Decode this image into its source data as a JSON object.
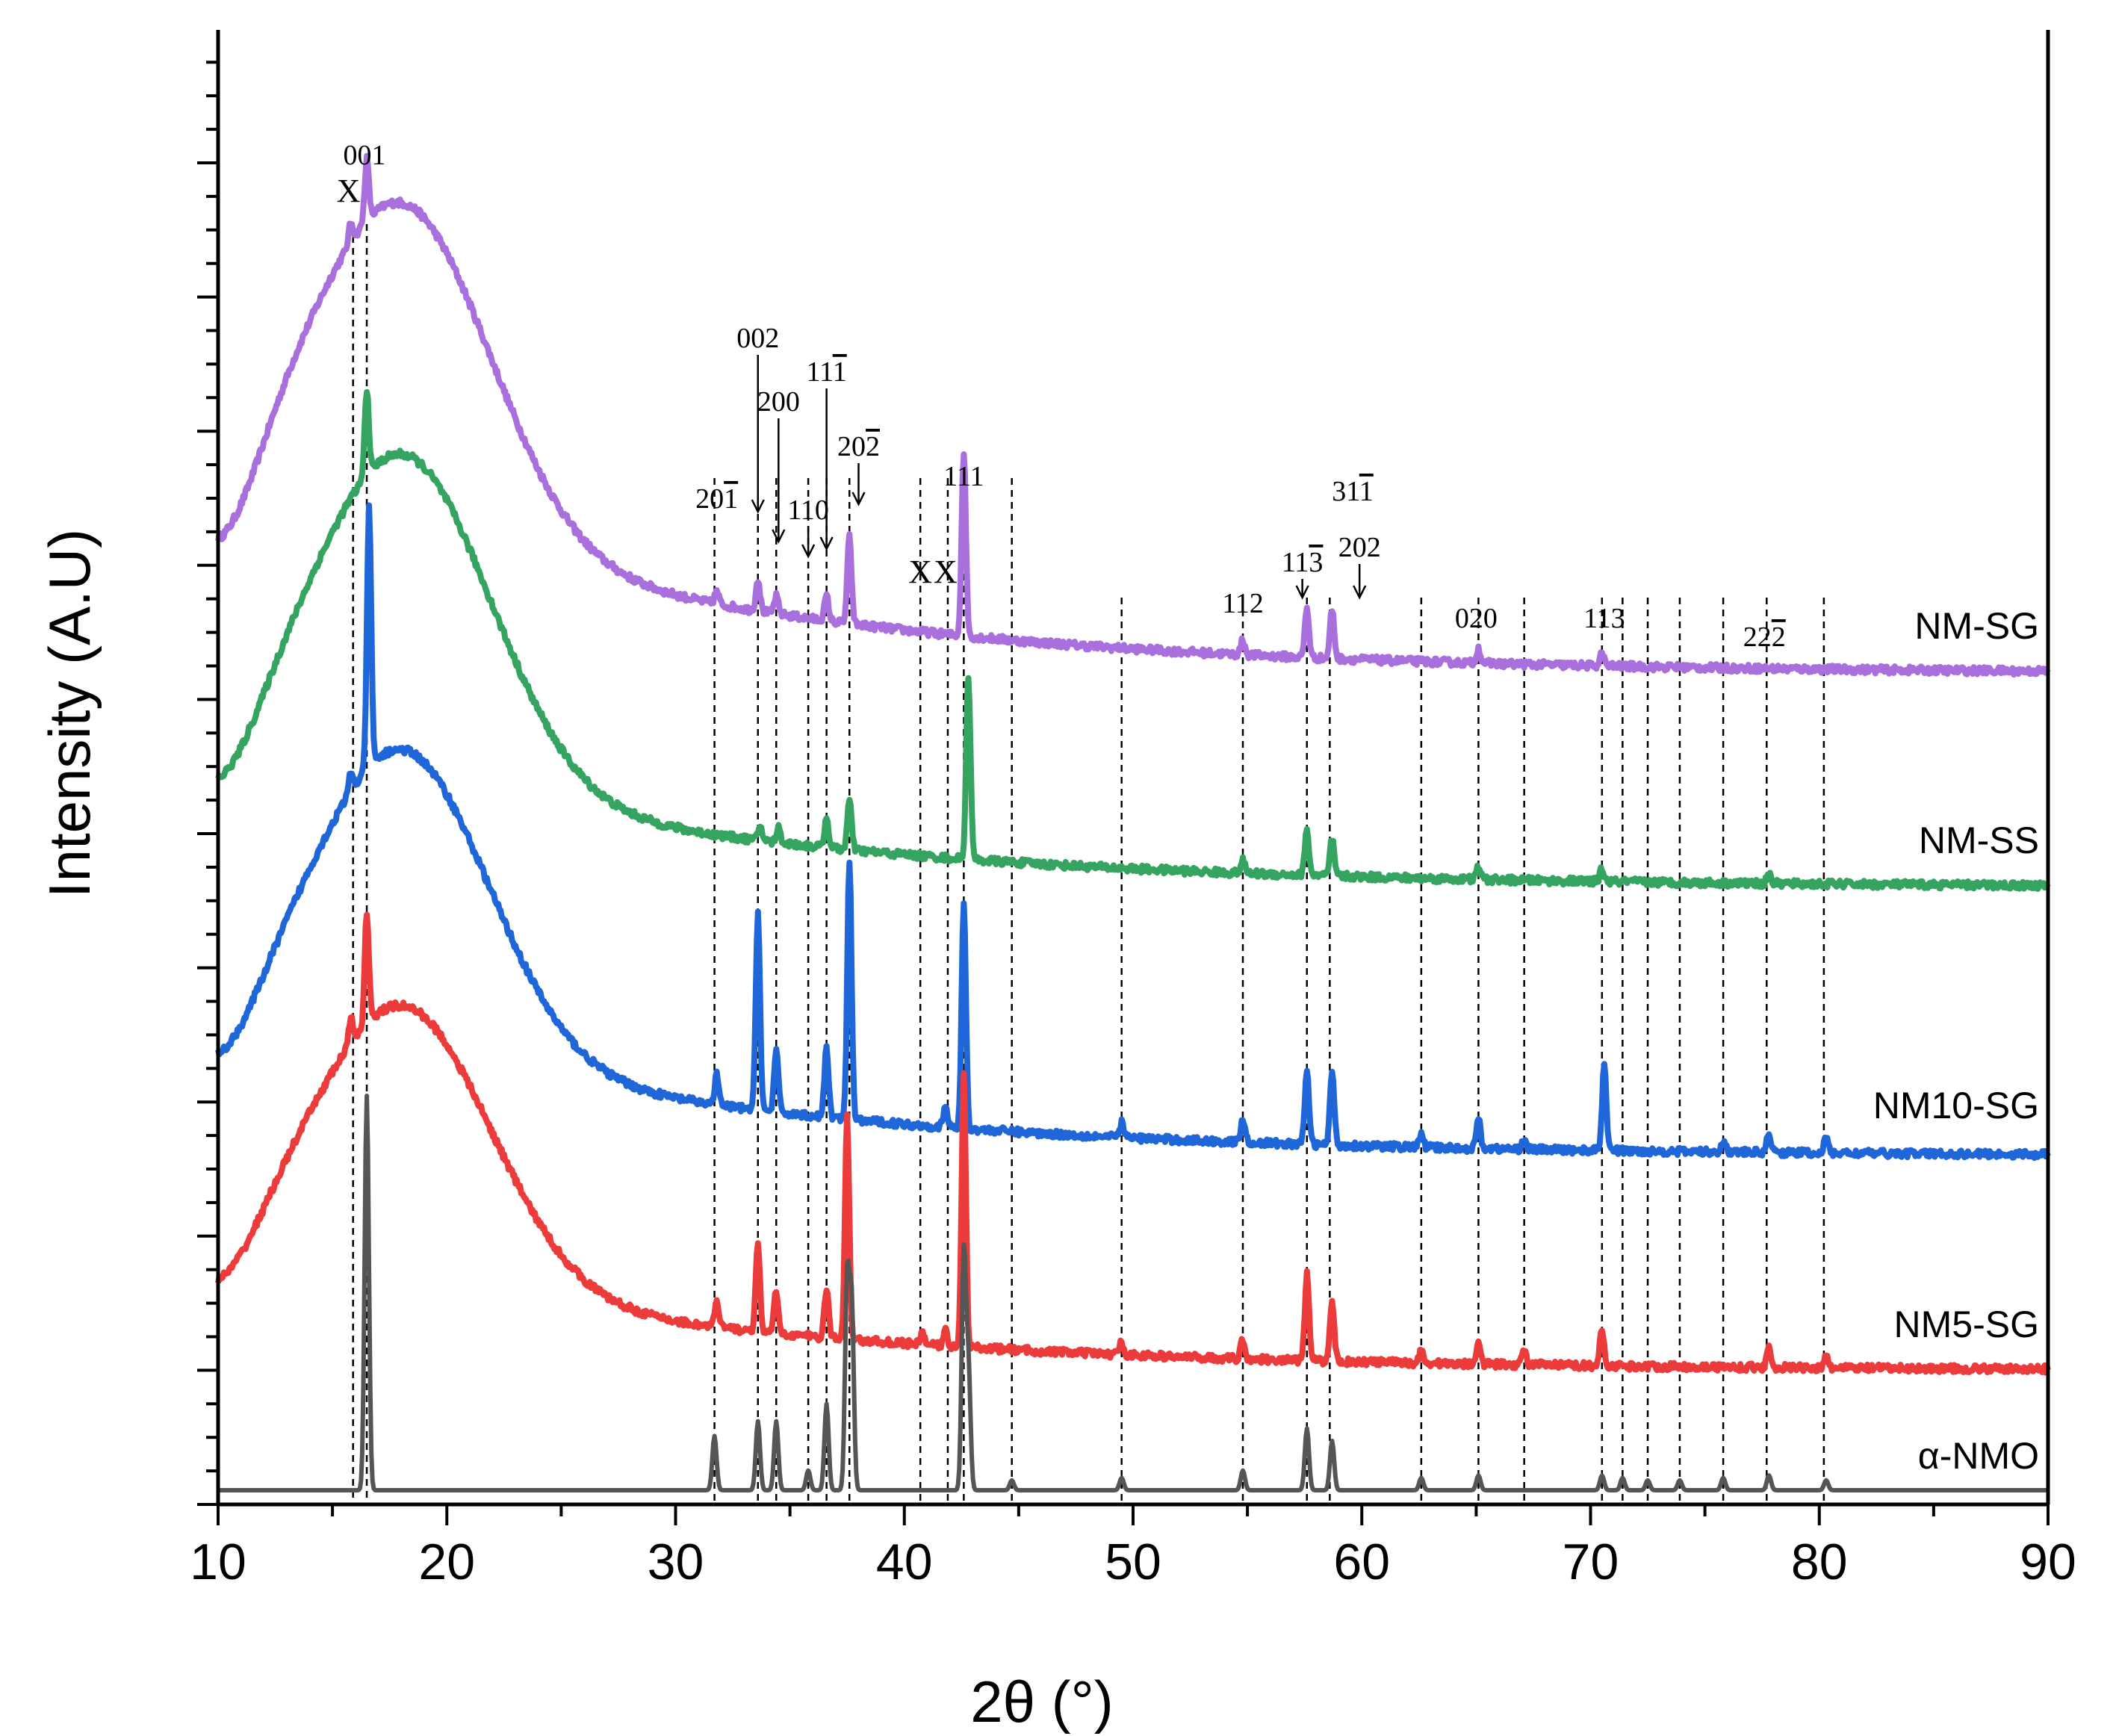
{
  "chart_data": {
    "type": "line",
    "title": "",
    "xlabel": "2θ (°)",
    "ylabel": "Intensity (A.U)",
    "xlim": [
      10,
      90
    ],
    "x_ticks": [
      "10",
      "20",
      "30",
      "40",
      "50",
      "60",
      "70",
      "80",
      "90"
    ],
    "x_tick_values": [
      10,
      20,
      30,
      40,
      50,
      60,
      70,
      80,
      90
    ],
    "series": [
      {
        "name": "NM-SG",
        "color": "#a96fdd",
        "offset": 4,
        "start_level": 1.6,
        "end_level": 0.0,
        "hump": {
          "center": 18.2,
          "height": 1.3,
          "width": 5.3
        },
        "peaks": [
          {
            "x": 16.5,
            "h": 0.25
          },
          {
            "x": 15.8,
            "h": 0.08
          },
          {
            "x": 31.8,
            "h": 0.05
          },
          {
            "x": 33.6,
            "h": 0.13
          },
          {
            "x": 34.4,
            "h": 0.07
          },
          {
            "x": 36.6,
            "h": 0.1
          },
          {
            "x": 37.6,
            "h": 0.35
          },
          {
            "x": 42.6,
            "h": 0.75
          },
          {
            "x": 54.8,
            "h": 0.06
          },
          {
            "x": 57.6,
            "h": 0.2
          },
          {
            "x": 58.7,
            "h": 0.2
          },
          {
            "x": 65.1,
            "h": 0.06
          },
          {
            "x": 70.5,
            "h": 0.05
          }
        ]
      },
      {
        "name": "NM-SS",
        "color": "#35a460",
        "offset": 3,
        "start_level": 1.2,
        "end_level": 0.0,
        "hump": {
          "center": 18.2,
          "height": 1.3,
          "width": 5.3
        },
        "peaks": [
          {
            "x": 16.5,
            "h": 0.35
          },
          {
            "x": 33.7,
            "h": 0.06
          },
          {
            "x": 34.5,
            "h": 0.06
          },
          {
            "x": 36.6,
            "h": 0.12
          },
          {
            "x": 37.6,
            "h": 0.2
          },
          {
            "x": 42.8,
            "h": 0.75
          },
          {
            "x": 54.8,
            "h": 0.05
          },
          {
            "x": 57.6,
            "h": 0.18
          },
          {
            "x": 58.7,
            "h": 0.15
          },
          {
            "x": 65.1,
            "h": 0.05
          },
          {
            "x": 70.5,
            "h": 0.05
          },
          {
            "x": 77.8,
            "h": 0.04
          }
        ]
      },
      {
        "name": "NM10-SG",
        "color": "#1f66d8",
        "offset": 2,
        "start_level": 1.18,
        "end_level": 0.0,
        "hump": {
          "center": 18.2,
          "height": 1.2,
          "width": 5.2
        },
        "peaks": [
          {
            "x": 16.6,
            "h": 1.05
          },
          {
            "x": 15.8,
            "h": 0.08
          },
          {
            "x": 31.8,
            "h": 0.12
          },
          {
            "x": 33.6,
            "h": 0.8
          },
          {
            "x": 34.4,
            "h": 0.25
          },
          {
            "x": 36.6,
            "h": 0.28
          },
          {
            "x": 37.6,
            "h": 1.05
          },
          {
            "x": 41.8,
            "h": 0.08
          },
          {
            "x": 42.6,
            "h": 0.92
          },
          {
            "x": 49.5,
            "h": 0.06
          },
          {
            "x": 54.8,
            "h": 0.1
          },
          {
            "x": 57.6,
            "h": 0.3
          },
          {
            "x": 58.7,
            "h": 0.3
          },
          {
            "x": 62.6,
            "h": 0.05
          },
          {
            "x": 65.1,
            "h": 0.12
          },
          {
            "x": 67.1,
            "h": 0.04
          },
          {
            "x": 70.6,
            "h": 0.35
          },
          {
            "x": 75.8,
            "h": 0.05
          },
          {
            "x": 77.8,
            "h": 0.08
          },
          {
            "x": 80.3,
            "h": 0.06
          }
        ]
      },
      {
        "name": "NM5-SG",
        "color": "#ec3b3b",
        "offset": 1,
        "start_level": 1.0,
        "end_level": 0.0,
        "hump": {
          "center": 18.2,
          "height": 1.1,
          "width": 5.3
        },
        "peaks": [
          {
            "x": 16.5,
            "h": 0.45
          },
          {
            "x": 15.8,
            "h": 0.1
          },
          {
            "x": 31.8,
            "h": 0.1
          },
          {
            "x": 33.6,
            "h": 0.35
          },
          {
            "x": 34.4,
            "h": 0.17
          },
          {
            "x": 36.6,
            "h": 0.2
          },
          {
            "x": 37.5,
            "h": 0.9
          },
          {
            "x": 40.8,
            "h": 0.05
          },
          {
            "x": 41.8,
            "h": 0.06
          },
          {
            "x": 42.6,
            "h": 1.1
          },
          {
            "x": 49.5,
            "h": 0.05
          },
          {
            "x": 54.8,
            "h": 0.08
          },
          {
            "x": 57.6,
            "h": 0.35
          },
          {
            "x": 58.7,
            "h": 0.25
          },
          {
            "x": 62.6,
            "h": 0.05
          },
          {
            "x": 65.1,
            "h": 0.1
          },
          {
            "x": 67.1,
            "h": 0.06
          },
          {
            "x": 70.5,
            "h": 0.15
          },
          {
            "x": 77.8,
            "h": 0.08
          },
          {
            "x": 80.3,
            "h": 0.04
          }
        ]
      },
      {
        "name": "α-NMO",
        "color": "#555555",
        "offset": 0,
        "start_level": 0.0,
        "end_level": 0.0,
        "hump": {
          "center": 18.2,
          "height": 0.0,
          "width": 5.0
        },
        "peaks": [
          {
            "x": 16.5,
            "h": 1.6
          },
          {
            "x": 31.7,
            "h": 0.22
          },
          {
            "x": 33.6,
            "h": 0.28
          },
          {
            "x": 34.4,
            "h": 0.28
          },
          {
            "x": 35.8,
            "h": 0.08
          },
          {
            "x": 36.6,
            "h": 0.35
          },
          {
            "x": 37.5,
            "h": 0.85
          },
          {
            "x": 37.7,
            "h": 0.75
          },
          {
            "x": 42.6,
            "h": 0.95
          },
          {
            "x": 42.8,
            "h": 0.5
          },
          {
            "x": 44.7,
            "h": 0.04
          },
          {
            "x": 49.5,
            "h": 0.05
          },
          {
            "x": 54.8,
            "h": 0.08
          },
          {
            "x": 57.6,
            "h": 0.25
          },
          {
            "x": 58.7,
            "h": 0.2
          },
          {
            "x": 62.6,
            "h": 0.05
          },
          {
            "x": 65.1,
            "h": 0.06
          },
          {
            "x": 70.5,
            "h": 0.06
          },
          {
            "x": 71.4,
            "h": 0.05
          },
          {
            "x": 72.5,
            "h": 0.04
          },
          {
            "x": 73.9,
            "h": 0.04
          },
          {
            "x": 75.8,
            "h": 0.05
          },
          {
            "x": 77.8,
            "h": 0.06
          },
          {
            "x": 80.3,
            "h": 0.04
          }
        ]
      }
    ],
    "reference_lines": [
      15.9,
      16.5,
      31.7,
      33.6,
      34.4,
      35.8,
      36.6,
      37.6,
      40.7,
      41.9,
      42.6,
      44.7,
      49.5,
      54.8,
      57.6,
      58.6,
      62.6,
      65.1,
      67.1,
      70.5,
      71.4,
      72.5,
      73.9,
      75.8,
      77.7,
      80.2
    ],
    "annotations": [
      {
        "text": "001",
        "x": 16.4
      },
      {
        "text": "X",
        "x": 15.7
      },
      {
        "text": "002",
        "x": 33.6
      },
      {
        "text": "200",
        "x": 34.5
      },
      {
        "text": "11",
        "overbar": "1",
        "x": 36.6
      },
      {
        "text": "20",
        "overbar": "2",
        "x": 38.0
      },
      {
        "text": "20",
        "overbar": "1",
        "x": 31.8
      },
      {
        "text": "110",
        "x": 35.8
      },
      {
        "text": "X",
        "x": 40.7
      },
      {
        "text": "X",
        "x": 41.8
      },
      {
        "text": "111",
        "x": 42.6
      },
      {
        "text": "112",
        "x": 54.8
      },
      {
        "text": "11",
        "overbar": "3",
        "x": 57.4
      },
      {
        "text": "31",
        "overbar": "1",
        "x": 59.6
      },
      {
        "text": "202",
        "x": 59.9
      },
      {
        "text": "020",
        "x": 65.0
      },
      {
        "text": "113",
        "x": 70.6
      },
      {
        "text": "22",
        "overbar": "2",
        "x": 77.6
      }
    ]
  }
}
